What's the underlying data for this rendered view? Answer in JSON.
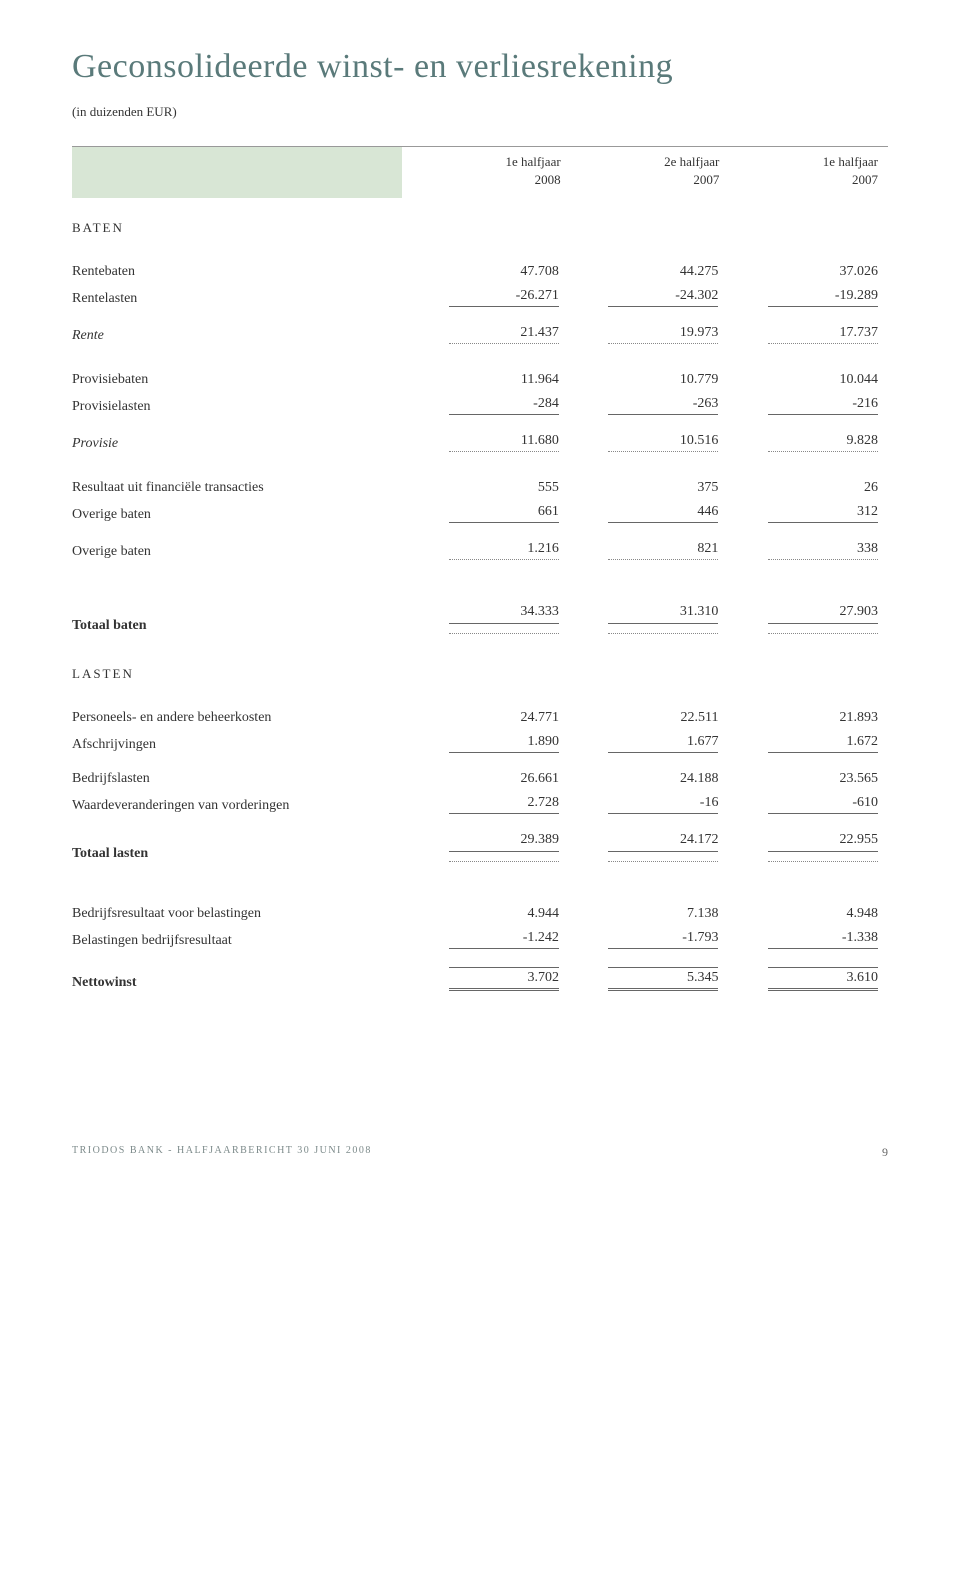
{
  "title": "Geconsolideerde winst- en verliesrekening",
  "subtitle": "(in duizenden EUR)",
  "columns": [
    {
      "l1": "1e halfjaar",
      "l2": "2008"
    },
    {
      "l1": "2e halfjaar",
      "l2": "2007"
    },
    {
      "l1": "1e halfjaar",
      "l2": "2007"
    }
  ],
  "baten_header": "BATEN",
  "lasten_header": "LASTEN",
  "rows": {
    "rentebaten": {
      "label": "Rentebaten",
      "v": [
        "47.708",
        "44.275",
        "37.026"
      ]
    },
    "rentelasten": {
      "label": "Rentelasten",
      "v": [
        "-26.271",
        "-24.302",
        "-19.289"
      ]
    },
    "rente": {
      "label": "Rente",
      "v": [
        "21.437",
        "19.973",
        "17.737"
      ]
    },
    "provisiebaten": {
      "label": "Provisiebaten",
      "v": [
        "11.964",
        "10.779",
        "10.044"
      ]
    },
    "provisielasten": {
      "label": "Provisielasten",
      "v": [
        "-284",
        "-263",
        "-216"
      ]
    },
    "provisie": {
      "label": "Provisie",
      "v": [
        "11.680",
        "10.516",
        "9.828"
      ]
    },
    "resultaat_ft": {
      "label": "Resultaat uit financiële transacties",
      "v": [
        "555",
        "375",
        "26"
      ]
    },
    "overige_baten": {
      "label": "Overige baten",
      "v": [
        "661",
        "446",
        "312"
      ]
    },
    "overige_baten2": {
      "label": "Overige baten",
      "v": [
        "1.216",
        "821",
        "338"
      ]
    },
    "totaal_baten": {
      "label": "Totaal baten",
      "v": [
        "34.333",
        "31.310",
        "27.903"
      ]
    },
    "personeels": {
      "label": "Personeels- en andere beheerkosten",
      "v": [
        "24.771",
        "22.511",
        "21.893"
      ]
    },
    "afschrijvingen": {
      "label": "Afschrijvingen",
      "v": [
        "1.890",
        "1.677",
        "1.672"
      ]
    },
    "bedrijfslasten": {
      "label": "Bedrijfslasten",
      "v": [
        "26.661",
        "24.188",
        "23.565"
      ]
    },
    "waardeverand": {
      "label": "Waardeveranderingen van vorderingen",
      "v": [
        "2.728",
        "-16",
        "-610"
      ]
    },
    "totaal_lasten": {
      "label": "Totaal lasten",
      "v": [
        "29.389",
        "24.172",
        "22.955"
      ]
    },
    "bedrijfsres": {
      "label": "Bedrijfsresultaat voor belastingen",
      "v": [
        "4.944",
        "7.138",
        "4.948"
      ]
    },
    "belastingen": {
      "label": "Belastingen bedrijfsresultaat",
      "v": [
        "-1.242",
        "-1.793",
        "-1.338"
      ]
    },
    "nettowinst": {
      "label": "Nettowinst",
      "v": [
        "3.702",
        "5.345",
        "3.610"
      ]
    }
  },
  "footer": {
    "text": "TRIODOS BANK - HALFJAARBERICHT 30 JUNI 2008",
    "page": "9"
  }
}
